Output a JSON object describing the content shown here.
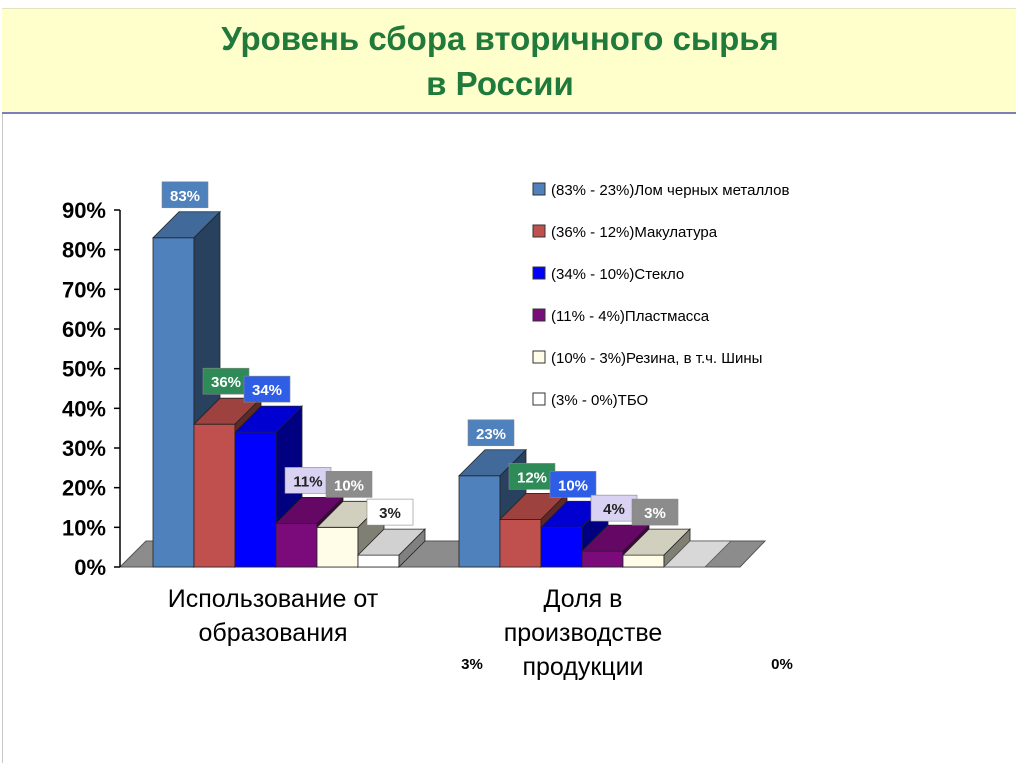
{
  "slide": {
    "title_line1": "Уровень сбора вторичного сырья",
    "title_line2": "в  России",
    "title_color": "#1f7a3c",
    "band_color": "#ffffcc"
  },
  "chart_data": {
    "type": "bar",
    "style": "3d-clustered-column",
    "categories": [
      "Использование от образования",
      "Доля в производстве продукции"
    ],
    "category_label_lines": [
      [
        "Использование от",
        "образования"
      ],
      [
        "Доля в",
        "производстве",
        "продукции"
      ]
    ],
    "series": [
      {
        "name": "(83% - 23%)Лом черных металлов",
        "values": [
          83,
          23
        ],
        "labels": [
          "83%",
          "23%"
        ],
        "color": "#4f81bd",
        "label_bg": "#4f81bd"
      },
      {
        "name": "(36% - 12%)Макулатура",
        "values": [
          36,
          12
        ],
        "labels": [
          "36%",
          "12%"
        ],
        "color": "#c0504d",
        "label_bg": "#2e8b57"
      },
      {
        "name": "(34% - 10%)Стекло",
        "values": [
          34,
          10
        ],
        "labels": [
          "34%",
          "10%"
        ],
        "color": "#0000ff",
        "label_bg": "#2f5ee6"
      },
      {
        "name": "(11% - 4%)Пластмасса",
        "values": [
          11,
          4
        ],
        "labels": [
          "11%",
          "4%"
        ],
        "color": "#7b0a7b",
        "label_bg": "#d9d2f2"
      },
      {
        "name": "(10% - 3%)Резина, в т.ч. Шины",
        "values": [
          10,
          3
        ],
        "labels": [
          "10%",
          "3%"
        ],
        "color": "#fffde8",
        "label_bg": "#8c8c8c"
      },
      {
        "name": "(3% - 0%)ТБО",
        "values": [
          3,
          0
        ],
        "labels": [
          "3%",
          "0%"
        ],
        "color": "#ffffff",
        "label_bg": "#ffffff"
      }
    ],
    "y_ticks": [
      "0%",
      "10%",
      "20%",
      "30%",
      "40%",
      "50%",
      "60%",
      "70%",
      "80%",
      "90%"
    ],
    "ylim": [
      0,
      90
    ],
    "outside_labels": [
      "3%",
      "0%"
    ],
    "floor_color": "#8c8c8c",
    "legend_position": "top-right"
  }
}
